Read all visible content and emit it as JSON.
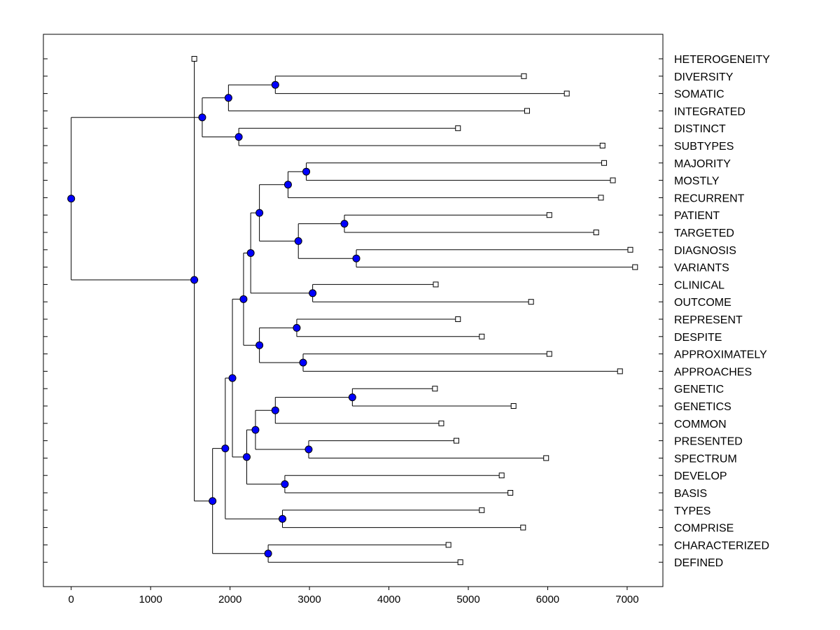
{
  "chart_data": {
    "type": "dendrogram",
    "x_range": [
      -350,
      7450
    ],
    "x_ticks": [
      0,
      1000,
      2000,
      3000,
      4000,
      5000,
      6000,
      7000
    ],
    "x_tick_labels": [
      "0",
      "1000",
      "2000",
      "3000",
      "4000",
      "5000",
      "6000",
      "7000"
    ],
    "leaf_marker_color": "#ffffff",
    "node_marker_color": "#0000ff",
    "leaves": [
      {
        "label": "HETEROGENEITY",
        "value": 1550
      },
      {
        "label": "DIVERSITY",
        "value": 5700
      },
      {
        "label": "SOMATIC",
        "value": 6240
      },
      {
        "label": "INTEGRATED",
        "value": 5740
      },
      {
        "label": "DISTINCT",
        "value": 4870
      },
      {
        "label": "SUBTYPES",
        "value": 6690
      },
      {
        "label": "MAJORITY",
        "value": 6710
      },
      {
        "label": "MOSTLY",
        "value": 6820
      },
      {
        "label": "RECURRENT",
        "value": 6670
      },
      {
        "label": "PATIENT",
        "value": 6020
      },
      {
        "label": "TARGETED",
        "value": 6610
      },
      {
        "label": "DIAGNOSIS",
        "value": 7040
      },
      {
        "label": "VARIANTS",
        "value": 7100
      },
      {
        "label": "CLINICAL",
        "value": 4590
      },
      {
        "label": "OUTCOME",
        "value": 5790
      },
      {
        "label": "REPRESENT",
        "value": 4870
      },
      {
        "label": "DESPITE",
        "value": 5170
      },
      {
        "label": "APPROXIMATELY",
        "value": 6020
      },
      {
        "label": "APPROACHES",
        "value": 6910
      },
      {
        "label": "GENETIC",
        "value": 4580
      },
      {
        "label": "GENETICS",
        "value": 5570
      },
      {
        "label": "COMMON",
        "value": 4660
      },
      {
        "label": "PRESENTED",
        "value": 4850
      },
      {
        "label": "SPECTRUM",
        "value": 5980
      },
      {
        "label": "DEVELOP",
        "value": 5420
      },
      {
        "label": "BASIS",
        "value": 5530
      },
      {
        "label": "TYPES",
        "value": 5170
      },
      {
        "label": "COMPRISE",
        "value": 5690
      },
      {
        "label": "CHARACTERIZED",
        "value": 4750
      },
      {
        "label": "DEFINED",
        "value": 4900
      }
    ],
    "merges": [
      {
        "id": "n_div_som",
        "value": 2570,
        "children": [
          1,
          2
        ]
      },
      {
        "id": "n_div_int",
        "value": 1980,
        "children": [
          "n_div_som",
          3
        ]
      },
      {
        "id": "n_dis_sub",
        "value": 2110,
        "children": [
          4,
          5
        ]
      },
      {
        "id": "n_top",
        "value": 1650,
        "children": [
          "n_div_int",
          "n_dis_sub"
        ]
      },
      {
        "id": "n_maj_mos",
        "value": 2960,
        "children": [
          6,
          7
        ]
      },
      {
        "id": "n_maj_rec",
        "value": 2730,
        "children": [
          "n_maj_mos",
          8
        ]
      },
      {
        "id": "n_pat_tar",
        "value": 3440,
        "children": [
          9,
          10
        ]
      },
      {
        "id": "n_dia_var",
        "value": 3590,
        "children": [
          11,
          12
        ]
      },
      {
        "id": "n_pat_var",
        "value": 2860,
        "children": [
          "n_pat_tar",
          "n_dia_var"
        ]
      },
      {
        "id": "n_maj_var",
        "value": 2370,
        "children": [
          "n_maj_rec",
          "n_pat_var"
        ]
      },
      {
        "id": "n_cli_out",
        "value": 3040,
        "children": [
          13,
          14
        ]
      },
      {
        "id": "n_maj_out",
        "value": 2260,
        "children": [
          "n_maj_var",
          "n_cli_out"
        ]
      },
      {
        "id": "n_rep_des",
        "value": 2840,
        "children": [
          15,
          16
        ]
      },
      {
        "id": "n_app",
        "value": 2920,
        "children": [
          17,
          18
        ]
      },
      {
        "id": "n_rep_app",
        "value": 2370,
        "children": [
          "n_rep_des",
          "n_app"
        ]
      },
      {
        "id": "n_maj_app",
        "value": 2170,
        "children": [
          "n_maj_out",
          "n_rep_app"
        ]
      },
      {
        "id": "n_gen",
        "value": 3540,
        "children": [
          19,
          20
        ]
      },
      {
        "id": "n_gen_com",
        "value": 2570,
        "children": [
          "n_gen",
          21
        ]
      },
      {
        "id": "n_pre_spe",
        "value": 2990,
        "children": [
          22,
          23
        ]
      },
      {
        "id": "n_gen_spe",
        "value": 2320,
        "children": [
          "n_gen_com",
          "n_pre_spe"
        ]
      },
      {
        "id": "n_dev_bas",
        "value": 2690,
        "children": [
          24,
          25
        ]
      },
      {
        "id": "n_gen_bas",
        "value": 2210,
        "children": [
          "n_gen_spe",
          "n_dev_bas"
        ]
      },
      {
        "id": "n_maj_bas",
        "value": 2030,
        "children": [
          "n_maj_app",
          "n_gen_bas"
        ]
      },
      {
        "id": "n_typ_com",
        "value": 2660,
        "children": [
          26,
          27
        ]
      },
      {
        "id": "n_maj_com",
        "value": 1940,
        "children": [
          "n_maj_bas",
          "n_typ_com"
        ]
      },
      {
        "id": "n_cha_def",
        "value": 2480,
        "children": [
          28,
          29
        ]
      },
      {
        "id": "n_maj_def",
        "value": 1780,
        "children": [
          "n_maj_com",
          "n_cha_def"
        ]
      },
      {
        "id": "n_lower",
        "value": 1550,
        "children": [
          0,
          "n_maj_def"
        ]
      },
      {
        "id": "n_root",
        "value": 0,
        "children": [
          "n_top",
          "n_lower"
        ]
      }
    ]
  }
}
